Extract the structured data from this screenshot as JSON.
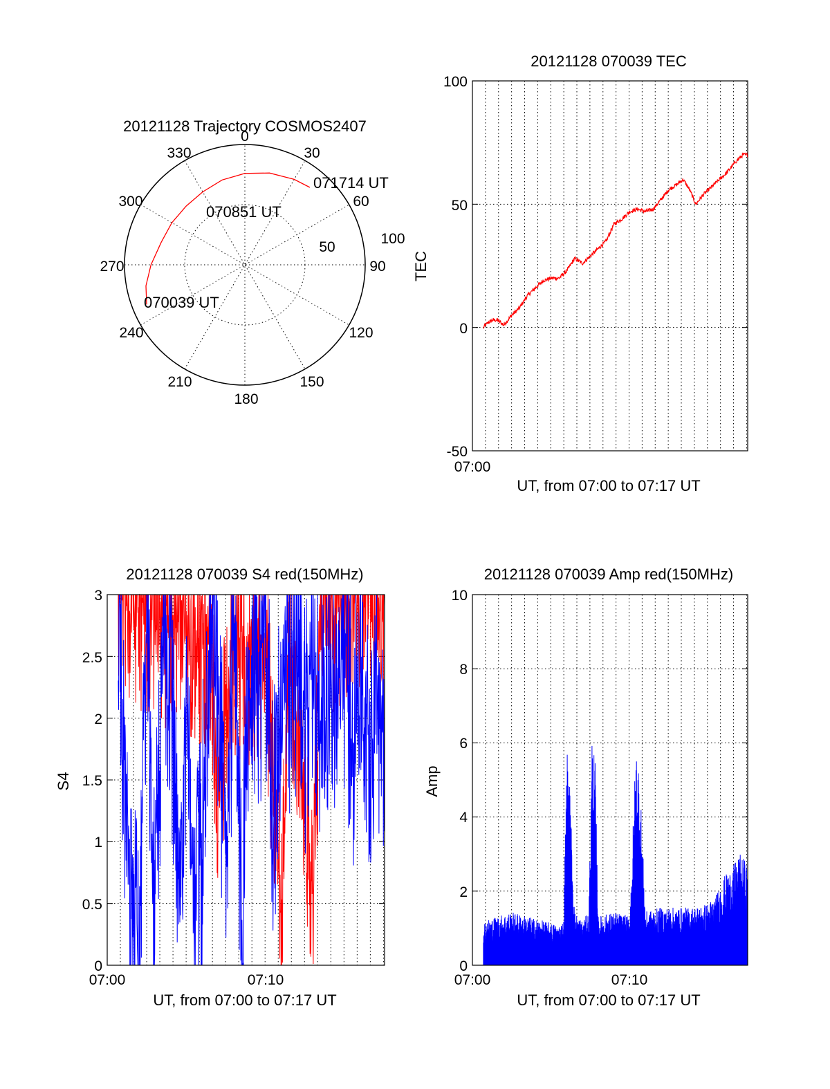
{
  "colors": {
    "red": "#ff0000",
    "blue": "#0000ff",
    "axis": "#000000"
  },
  "polar": {
    "title": "20121128 Trajectory COSMOS2407",
    "azimuth_labels": [
      "0",
      "30",
      "60",
      "90",
      "120",
      "150",
      "180",
      "210",
      "240",
      "270",
      "300",
      "330"
    ],
    "radial_labels": [
      "50",
      "100"
    ],
    "annotations": [
      "071714 UT",
      "070851 UT",
      "070039 UT"
    ],
    "chart_data": {
      "type": "polar-trajectory",
      "title": "20121128 Trajectory COSMOS2407",
      "color": "#ff0000",
      "points": [
        {
          "time": "070039 UT",
          "azimuth": 248,
          "zenith": 88
        },
        {
          "time": "070851 UT",
          "azimuth": 300,
          "zenith": 70
        },
        {
          "time": "071714 UT",
          "azimuth": 40,
          "zenith": 84
        }
      ],
      "trajectory": [
        [
          248,
          88
        ],
        [
          258,
          84
        ],
        [
          270,
          78
        ],
        [
          285,
          72
        ],
        [
          300,
          70
        ],
        [
          315,
          69
        ],
        [
          330,
          70
        ],
        [
          345,
          73
        ],
        [
          0,
          76
        ],
        [
          15,
          79
        ],
        [
          30,
          82
        ],
        [
          40,
          84
        ]
      ],
      "rlim": [
        0,
        100
      ]
    }
  },
  "tec": {
    "title": "20121128 070039 TEC",
    "ylabel": "TEC",
    "xlabel": "UT, from 07:00 to 07:17 UT",
    "yticks": [
      "100",
      "50",
      "0",
      "-50"
    ],
    "xticks": [
      "07:00"
    ],
    "chart_data": {
      "type": "line",
      "title": "20121128 070039 TEC",
      "xlabel": "UT, from 07:00 to 07:17 UT",
      "ylabel": "TEC",
      "x_unit": "minutes after 07:00",
      "xlim": [
        0,
        17.5
      ],
      "ylim": [
        -50,
        100
      ],
      "grid": true,
      "series": [
        {
          "color": "#ff0000",
          "x": [
            0.7,
            1.0,
            1.3,
            1.6,
            2.0,
            2.5,
            3.0,
            3.5,
            4.0,
            4.5,
            5.0,
            5.5,
            6.0,
            6.5,
            7.0,
            7.5,
            8.0,
            8.5,
            9.0,
            9.5,
            10.0,
            10.5,
            11.0,
            11.5,
            12.0,
            12.5,
            13.0,
            13.4,
            13.8,
            14.2,
            14.7,
            15.2,
            15.7,
            16.2,
            16.7,
            17.2,
            17.5
          ],
          "y": [
            0,
            2,
            3,
            3,
            1,
            5,
            8,
            13,
            16,
            19,
            20,
            20,
            23,
            28,
            26,
            29,
            32,
            35,
            42,
            44,
            47,
            48,
            47,
            48,
            52,
            56,
            58,
            60,
            56,
            50,
            54,
            57,
            60,
            63,
            67,
            70,
            70
          ]
        }
      ]
    }
  },
  "s4": {
    "title": "20121128 070039 S4 red(150MHz)",
    "ylabel": "S4",
    "xlabel": "UT, from 07:00 to 07:17 UT",
    "yticks": [
      "3",
      "2.5",
      "2",
      "1.5",
      "1",
      "0.5",
      "0"
    ],
    "xticks": [
      "07:00",
      "07:10"
    ],
    "chart_data": {
      "type": "line",
      "title": "20121128 070039 S4 red(150MHz)",
      "xlabel": "UT, from 07:00 to 07:17 UT",
      "ylabel": "S4",
      "x_unit": "minutes after 07:00",
      "xlim": [
        0,
        17.5
      ],
      "ylim": [
        0,
        3
      ],
      "grid": true,
      "series": [
        {
          "color": "#ff0000",
          "x": [
            0.7,
            1.5,
            2.5,
            3.5,
            4.5,
            5.5,
            6.5,
            7.0,
            8.0,
            9.0,
            10.0,
            11.0,
            11.5,
            12.0,
            12.5,
            13.0,
            13.5,
            14.5,
            15.5,
            16.5,
            17.5
          ],
          "y": [
            2.9,
            2.7,
            2.6,
            2.5,
            2.6,
            2.4,
            2.3,
            1.2,
            2.3,
            2.2,
            2.3,
            0,
            2.4,
            1.5,
            0.7,
            0.5,
            2.5,
            2.6,
            2.8,
            2.8,
            2.7
          ]
        },
        {
          "color": "#0000ff",
          "x": [
            0.7,
            1.0,
            1.5,
            2.0,
            2.5,
            3.0,
            3.5,
            4.0,
            4.5,
            5.0,
            5.5,
            6.0,
            6.5,
            7.0,
            7.5,
            8.0,
            8.5,
            9.0,
            9.5,
            10.0,
            10.5,
            11.0,
            11.5,
            12.0,
            12.5,
            13.0,
            13.5,
            14.0,
            14.5,
            15.0,
            15.5,
            16.0,
            16.5,
            17.0,
            17.5
          ],
          "y": [
            2.8,
            1.5,
            0,
            0,
            2.5,
            0,
            2.3,
            2.2,
            0,
            2.0,
            0,
            0.8,
            2.4,
            1.8,
            0.6,
            2.4,
            0,
            2.2,
            2.0,
            2.3,
            0.9,
            2.1,
            1.8,
            2.2,
            1.7,
            2.0,
            1.6,
            2.1,
            1.9,
            2.2,
            1.5,
            2.2,
            1.4,
            2.0,
            1.5
          ]
        }
      ]
    }
  },
  "amp": {
    "title": "20121128 070039 Amp red(150MHz)",
    "ylabel": "Amp",
    "xlabel": "UT, from 07:00 to 07:17 UT",
    "yticks": [
      "10",
      "8",
      "6",
      "4",
      "2",
      "0"
    ],
    "xticks": [
      "07:00",
      "07:10"
    ],
    "chart_data": {
      "type": "line",
      "title": "20121128 070039 Amp red(150MHz)",
      "xlabel": "UT, from 07:00 to 07:17 UT",
      "ylabel": "Amp",
      "x_unit": "minutes after 07:00",
      "xlim": [
        0,
        17.5
      ],
      "ylim": [
        0,
        10
      ],
      "grid": true,
      "series": [
        {
          "color": "#0000ff",
          "x": [
            0.7,
            1.5,
            2.5,
            3.5,
            4.5,
            5.5,
            5.8,
            6.0,
            6.2,
            6.5,
            7.0,
            7.4,
            7.6,
            7.8,
            8.0,
            9.0,
            10.0,
            10.4,
            10.6,
            11.0,
            12.0,
            13.0,
            14.0,
            15.0,
            15.5,
            16.0,
            16.5,
            17.0,
            17.5
          ],
          "y": [
            1.0,
            1.1,
            1.2,
            1.1,
            1.0,
            0.9,
            1.0,
            5.0,
            4.0,
            1.2,
            1.0,
            1.2,
            5.2,
            4.6,
            1.1,
            1.2,
            1.1,
            5.0,
            4.6,
            1.2,
            1.3,
            1.3,
            1.3,
            1.4,
            1.6,
            2.0,
            2.2,
            2.5,
            2.3
          ]
        }
      ]
    }
  }
}
